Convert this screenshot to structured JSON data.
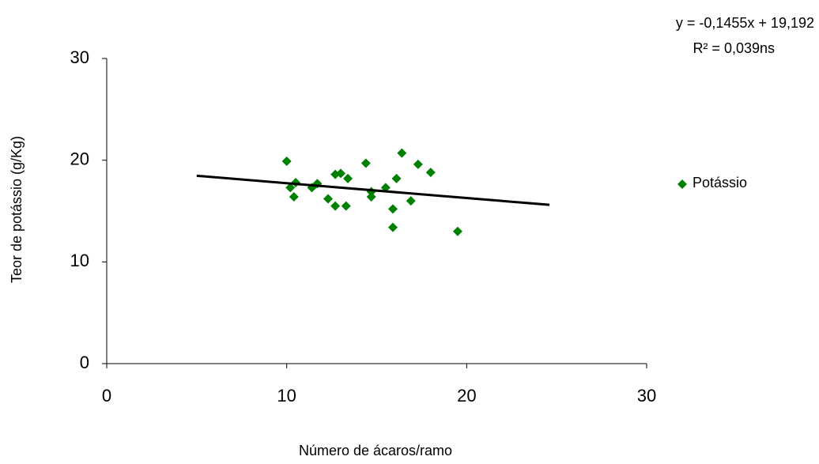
{
  "chart_data": {
    "type": "scatter",
    "x_label": "Número de ácaros/ramo",
    "y_label": "Teor de potássio (g/Kg)",
    "equation": "y = -0,1455x + 19,192",
    "r_squared": "R² = 0,039ns",
    "xlim": [
      0,
      30
    ],
    "xticks": [
      0,
      10,
      20,
      30
    ],
    "ylim": [
      0,
      30
    ],
    "yticks": [
      0,
      10,
      20,
      30
    ],
    "grid": false,
    "legend": "right",
    "series": [
      {
        "name": "Potássio",
        "color": "#008000",
        "x": [
          10.0,
          10.2,
          10.5,
          10.4,
          11.4,
          11.7,
          12.3,
          12.7,
          13.0,
          12.7,
          13.4,
          13.3,
          14.4,
          14.7,
          14.7,
          15.5,
          15.9,
          15.9,
          16.1,
          16.4,
          16.9,
          17.3,
          18.0,
          19.5
        ],
        "values": [
          19.9,
          17.3,
          17.8,
          16.4,
          17.3,
          17.7,
          16.2,
          18.6,
          18.7,
          15.5,
          18.2,
          15.5,
          19.7,
          16.9,
          16.4,
          17.3,
          15.2,
          13.4,
          18.2,
          20.7,
          16.0,
          19.6,
          18.8,
          13.0
        ]
      }
    ],
    "trendline": {
      "color": "#000000",
      "x": [
        5,
        24.6
      ],
      "y": [
        18.47,
        15.61
      ]
    }
  }
}
